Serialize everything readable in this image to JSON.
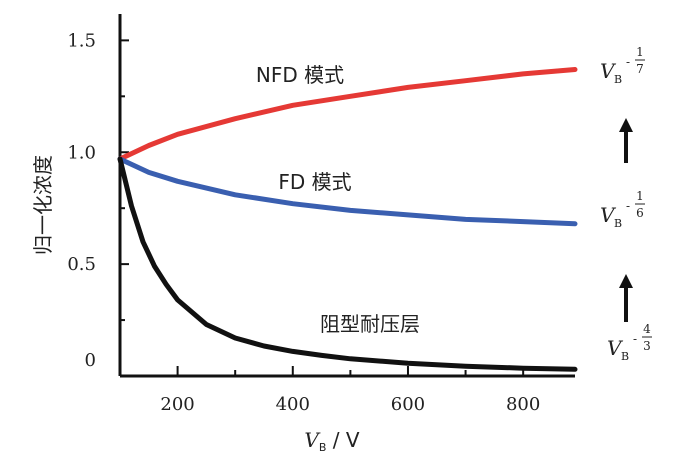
{
  "chart_data": {
    "type": "line",
    "title": "",
    "ylabel": "归一化浓度",
    "xlabel": {
      "var": "V",
      "sub": "B",
      "unit": " / V"
    },
    "xlim": [
      100,
      890
    ],
    "ylim": [
      0,
      1.6
    ],
    "xticks": [
      200,
      400,
      600,
      800
    ],
    "xminor": [
      300,
      500,
      700
    ],
    "yticks": [
      {
        "value": 0,
        "label": "0"
      },
      {
        "value": 0.5,
        "label": "0.5"
      },
      {
        "value": 1.0,
        "label": "1.0"
      },
      {
        "value": 1.5,
        "label": "1.5"
      }
    ],
    "series": [
      {
        "name": "NFD 模式",
        "color": "#e53935",
        "x": [
          100,
          150,
          200,
          300,
          400,
          500,
          600,
          700,
          800,
          890
        ],
        "y": [
          0.97,
          1.03,
          1.08,
          1.15,
          1.21,
          1.25,
          1.29,
          1.32,
          1.35,
          1.37
        ]
      },
      {
        "name": "FD 模式",
        "color": "#3a5fb0",
        "x": [
          100,
          150,
          200,
          300,
          400,
          500,
          600,
          700,
          800,
          890
        ],
        "y": [
          0.97,
          0.91,
          0.87,
          0.81,
          0.77,
          0.74,
          0.72,
          0.7,
          0.69,
          0.68
        ]
      },
      {
        "name": "阻型耐压层",
        "color": "#111111",
        "x": [
          100,
          120,
          140,
          160,
          180,
          200,
          250,
          300,
          350,
          400,
          450,
          500,
          600,
          700,
          800,
          890
        ],
        "y": [
          0.97,
          0.76,
          0.6,
          0.49,
          0.41,
          0.34,
          0.23,
          0.17,
          0.134,
          0.11,
          0.092,
          0.077,
          0.057,
          0.044,
          0.035,
          0.03
        ]
      }
    ],
    "annotations": [
      {
        "base": "V",
        "sub": "B",
        "sup_sign": "-",
        "num": "1",
        "den": "7",
        "color": "#e53935"
      },
      {
        "base": "V",
        "sub": "B",
        "sup_sign": "-",
        "num": "1",
        "den": "6",
        "color": "#3a5fb0"
      },
      {
        "base": "V",
        "sub": "B",
        "sup_sign": "-",
        "num": "4",
        "den": "3",
        "color": "#111111"
      }
    ],
    "grid": false,
    "legend": "none"
  }
}
